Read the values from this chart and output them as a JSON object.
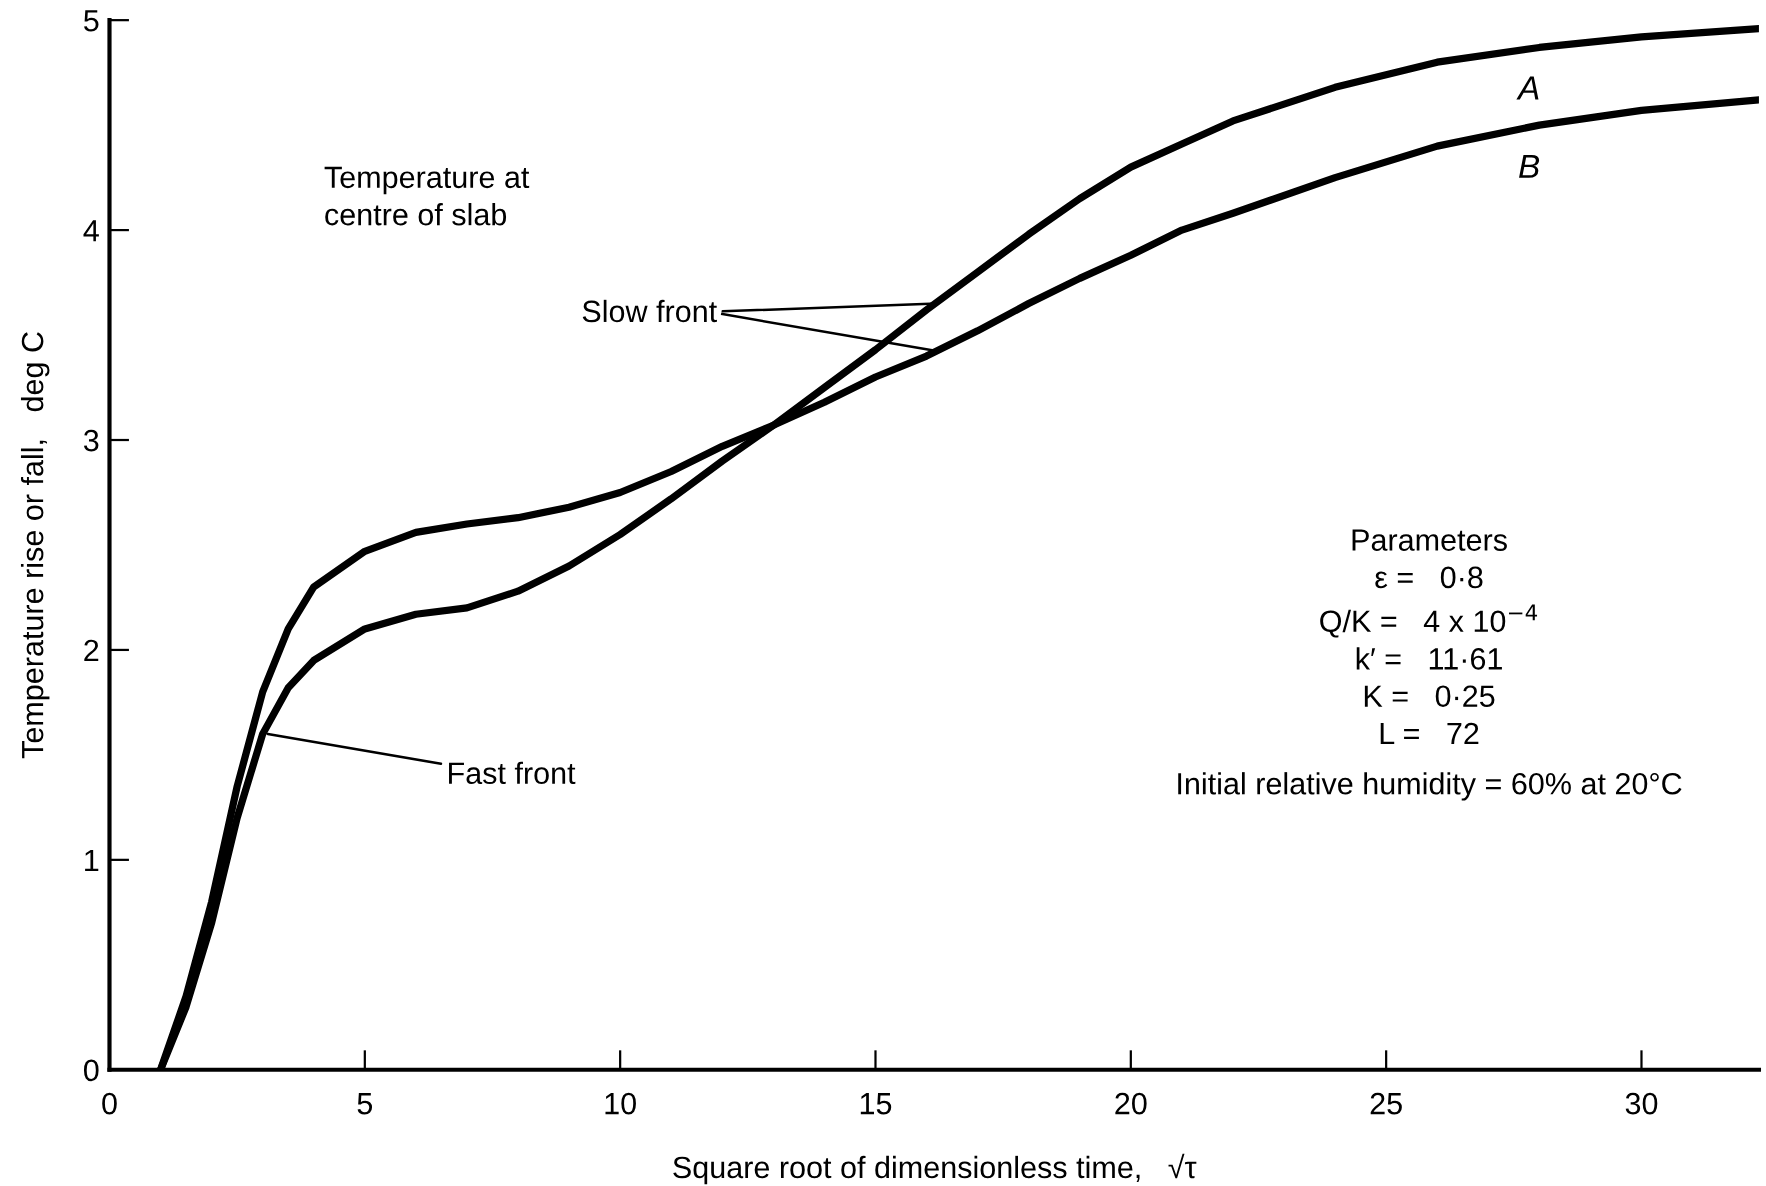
{
  "chart_data": {
    "type": "line",
    "xlabel": "Square root of dimensionless time,   √τ",
    "ylabel": "Temperature rise or fall,   deg C",
    "xlim": [
      0,
      32.3
    ],
    "ylim": [
      0,
      5
    ],
    "xticks": [
      0,
      5,
      10,
      15,
      20,
      25,
      30
    ],
    "yticks": [
      0,
      1,
      2,
      3,
      4,
      5
    ],
    "grid": false,
    "legend": false,
    "marker": "none",
    "line_style": "solid",
    "series": [
      {
        "name": "A",
        "color": "#000000",
        "x": [
          1.0,
          1.5,
          2,
          2.5,
          3,
          3.5,
          4,
          5,
          6,
          7,
          8,
          9,
          10,
          11,
          12,
          13,
          14,
          15,
          16,
          17,
          18,
          19,
          20,
          21,
          22,
          24,
          26,
          28,
          30,
          32.3
        ],
        "values": [
          0,
          0.3,
          0.7,
          1.2,
          1.6,
          1.82,
          1.95,
          2.1,
          2.17,
          2.2,
          2.28,
          2.4,
          2.55,
          2.72,
          2.9,
          3.07,
          3.25,
          3.43,
          3.62,
          3.8,
          3.98,
          4.15,
          4.3,
          4.41,
          4.52,
          4.68,
          4.8,
          4.87,
          4.92,
          4.96
        ]
      },
      {
        "name": "B",
        "color": "#000000",
        "x": [
          1.0,
          1.5,
          2,
          2.5,
          3,
          3.5,
          4,
          5,
          6,
          7,
          8,
          9,
          10,
          11,
          12,
          13,
          14,
          15,
          16,
          17,
          18,
          19,
          20,
          21,
          22,
          24,
          26,
          28,
          30,
          32.3
        ],
        "values": [
          0,
          0.35,
          0.8,
          1.35,
          1.8,
          2.1,
          2.3,
          2.47,
          2.56,
          2.6,
          2.63,
          2.68,
          2.75,
          2.85,
          2.97,
          3.07,
          3.18,
          3.3,
          3.4,
          3.52,
          3.65,
          3.77,
          3.88,
          4.0,
          4.08,
          4.25,
          4.4,
          4.5,
          4.57,
          4.62
        ]
      }
    ],
    "annotations": [
      "Temperature at\ncentre of slab",
      {
        "text": "Slow front",
        "x": 16.2,
        "y": 3.65
      },
      {
        "text": "Fast front",
        "x": 3.1,
        "y": 1.6
      },
      "Parameters\nε =   0·8\nQ/K =   4 x 10$^{−4}$\nk′ =   11·61\nK =   0·25\nL =   72",
      "Initial relative humidity = 60% at 20°C"
    ]
  }
}
